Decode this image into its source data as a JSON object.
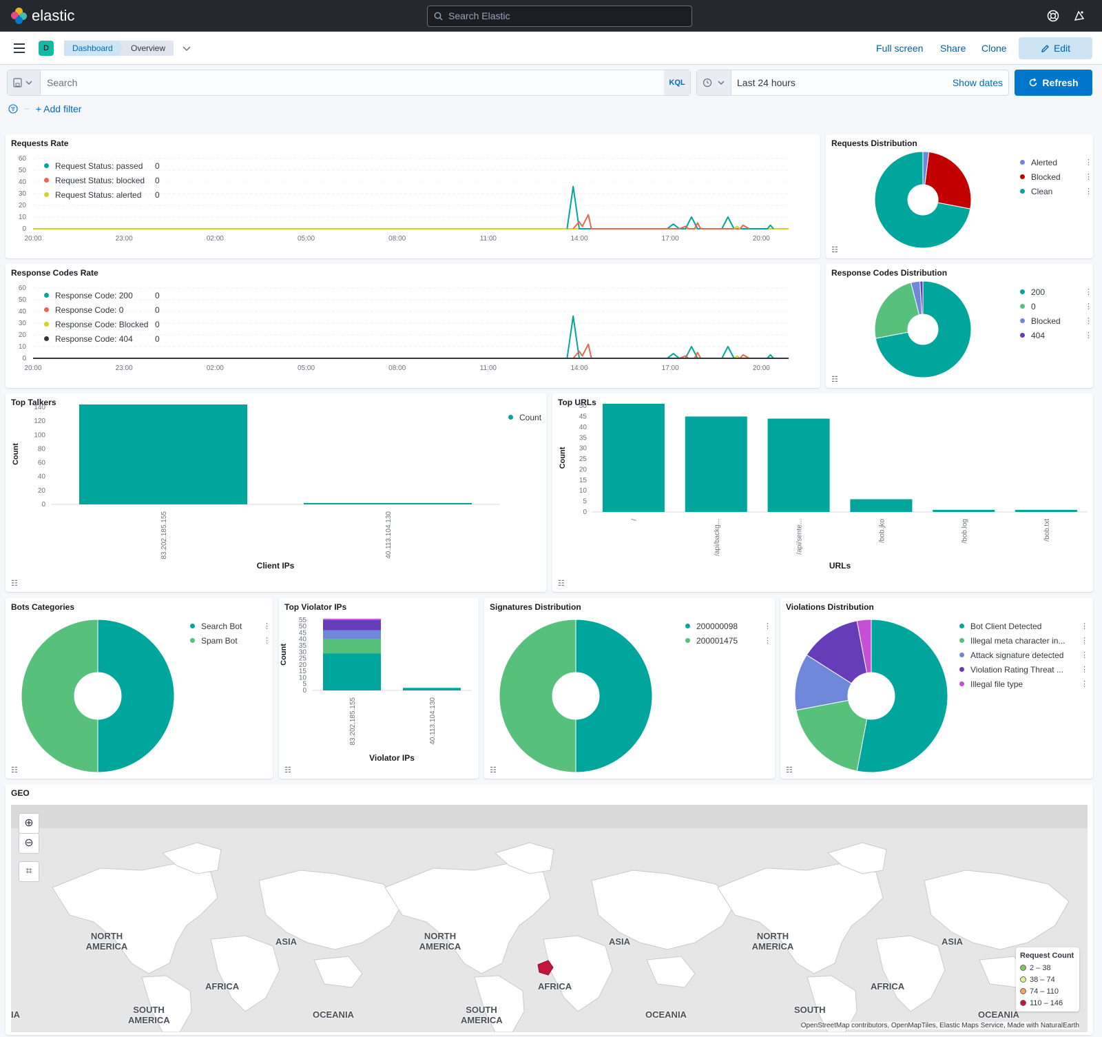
{
  "app": {
    "logo_text": "elastic",
    "search_placeholder": "Search Elastic",
    "space_initial": "D"
  },
  "nav": {
    "breadcrumbs": [
      "Dashboard",
      "Overview"
    ],
    "actions": {
      "full_screen": "Full screen",
      "share": "Share",
      "clone": "Clone",
      "edit": "Edit"
    }
  },
  "query": {
    "placeholder": "Search",
    "language": "KQL",
    "time_range": "Last 24 hours",
    "show_dates": "Show dates",
    "refresh": "Refresh",
    "add_filter": "+ Add filter"
  },
  "colors": {
    "teal": "#00a69b",
    "green": "#57c17b",
    "red": "#c20000",
    "blue": "#6f87d8",
    "purple": "#663db8",
    "pink": "#c54fd7",
    "yellow": "#d6d320",
    "dark": "#343741",
    "coral": "#e7664c"
  },
  "panels": {
    "requests_rate": {
      "title": "Requests Rate"
    },
    "requests_distribution": {
      "title": "Requests Distribution"
    },
    "response_codes_rate": {
      "title": "Response Codes Rate"
    },
    "response_codes_distribution": {
      "title": "Response Codes Distribution"
    },
    "top_talkers": {
      "title": "Top Talkers"
    },
    "top_urls": {
      "title": "Top URLs"
    },
    "bots_categories": {
      "title": "Bots Categories"
    },
    "top_violator_ips": {
      "title": "Top Violator IPs"
    },
    "signatures_distribution": {
      "title": "Signatures Distribution"
    },
    "violations_distribution": {
      "title": "Violations Distribution"
    },
    "geo": {
      "title": "GEO",
      "continents": [
        "NORTH AMERICA",
        "ASIA",
        "AFRICA",
        "SOUTH AMERICA",
        "OCEANIA",
        "IA",
        "SOUTH"
      ],
      "legend_title": "Request Count",
      "legend": [
        {
          "label": "2 – 38",
          "color": "#7dc95e"
        },
        {
          "label": "38 – 74",
          "color": "#e8f08a"
        },
        {
          "label": "74 – 110",
          "color": "#f4a55a"
        },
        {
          "label": "110 – 146",
          "color": "#c3143c"
        }
      ],
      "attribution": "OpenStreetMap contributors, OpenMapTiles, Elastic Maps Service, Made with NaturalEarth"
    }
  },
  "chart_data": [
    {
      "id": "requests_rate",
      "type": "line",
      "title": "Requests Rate",
      "x_ticks": [
        "20:00",
        "23:00",
        "02:00",
        "05:00",
        "08:00",
        "11:00",
        "14:00",
        "17:00",
        "20:00"
      ],
      "ylim": [
        0,
        60
      ],
      "y_ticks": [
        0,
        10,
        20,
        30,
        40,
        50,
        60
      ],
      "series": [
        {
          "name": "Request Status: passed",
          "legend_value": "0",
          "color": "#00a69b",
          "points": [
            [
              17.6,
              0
            ],
            [
              17.8,
              36
            ],
            [
              18.0,
              0
            ],
            [
              20.9,
              0
            ],
            [
              21.1,
              4
            ],
            [
              21.3,
              0
            ],
            [
              21.5,
              0
            ],
            [
              21.7,
              10
            ],
            [
              21.9,
              0
            ],
            [
              22.7,
              0
            ],
            [
              22.9,
              10
            ],
            [
              23.1,
              0
            ],
            [
              24.2,
              0
            ],
            [
              24.3,
              3
            ],
            [
              24.4,
              0
            ]
          ]
        },
        {
          "name": "Request Status: blocked",
          "legend_value": "0",
          "color": "#e7664c",
          "points": [
            [
              17.8,
              0
            ],
            [
              18.0,
              6
            ],
            [
              18.1,
              2
            ],
            [
              18.3,
              12
            ],
            [
              18.4,
              0
            ],
            [
              21.3,
              0
            ],
            [
              21.5,
              2
            ],
            [
              21.6,
              0
            ],
            [
              21.8,
              0
            ],
            [
              21.9,
              5
            ],
            [
              22.0,
              0
            ],
            [
              23.3,
              0
            ],
            [
              23.4,
              3
            ],
            [
              23.6,
              0
            ]
          ]
        },
        {
          "name": "Request Status: alerted",
          "legend_value": "0",
          "color": "#d6d320",
          "points": [
            [
              23.1,
              0
            ],
            [
              23.2,
              2
            ],
            [
              23.3,
              0
            ]
          ]
        }
      ]
    },
    {
      "id": "requests_distribution",
      "type": "pie",
      "title": "Requests Distribution",
      "slices": [
        {
          "label": "Alerted",
          "value": 2,
          "color": "#6f87d8"
        },
        {
          "label": "Blocked",
          "value": 26,
          "color": "#c20000"
        },
        {
          "label": "Clean",
          "value": 72,
          "color": "#00a69b"
        }
      ]
    },
    {
      "id": "response_codes_rate",
      "type": "line",
      "title": "Response Codes Rate",
      "x_ticks": [
        "20:00",
        "23:00",
        "02:00",
        "05:00",
        "08:00",
        "11:00",
        "14:00",
        "17:00",
        "20:00"
      ],
      "ylim": [
        0,
        60
      ],
      "y_ticks": [
        0,
        10,
        20,
        30,
        40,
        50,
        60
      ],
      "series": [
        {
          "name": "Response Code: 200",
          "legend_value": "0",
          "color": "#00a69b",
          "points": [
            [
              17.6,
              0
            ],
            [
              17.8,
              36
            ],
            [
              18.0,
              0
            ],
            [
              20.9,
              0
            ],
            [
              21.1,
              4
            ],
            [
              21.3,
              0
            ],
            [
              21.5,
              0
            ],
            [
              21.7,
              10
            ],
            [
              21.9,
              0
            ],
            [
              22.7,
              0
            ],
            [
              22.9,
              10
            ],
            [
              23.1,
              0
            ],
            [
              24.2,
              0
            ],
            [
              24.3,
              3
            ],
            [
              24.4,
              0
            ]
          ]
        },
        {
          "name": "Response Code: 0",
          "legend_value": "0",
          "color": "#e7664c",
          "points": [
            [
              17.8,
              0
            ],
            [
              18.0,
              6
            ],
            [
              18.1,
              2
            ],
            [
              18.3,
              12
            ],
            [
              18.4,
              0
            ],
            [
              21.3,
              0
            ],
            [
              21.5,
              2
            ],
            [
              21.6,
              0
            ],
            [
              21.8,
              0
            ],
            [
              21.9,
              5
            ],
            [
              22.0,
              0
            ],
            [
              23.3,
              0
            ],
            [
              23.4,
              3
            ],
            [
              23.6,
              0
            ]
          ]
        },
        {
          "name": "Response Code: Blocked",
          "legend_value": "0",
          "color": "#d6d320",
          "points": [
            [
              23.1,
              0
            ],
            [
              23.2,
              2
            ],
            [
              23.3,
              0
            ]
          ]
        },
        {
          "name": "Response Code: 404",
          "legend_value": "0",
          "color": "#343741",
          "points": [
            [
              0,
              0
            ],
            [
              24.9,
              0
            ]
          ]
        }
      ]
    },
    {
      "id": "response_codes_distribution",
      "type": "pie",
      "title": "Response Codes Distribution",
      "slices": [
        {
          "label": "200",
          "value": 72,
          "color": "#00a69b"
        },
        {
          "label": "0",
          "value": 24,
          "color": "#57c17b"
        },
        {
          "label": "Blocked",
          "value": 3,
          "color": "#6f87d8"
        },
        {
          "label": "404",
          "value": 1,
          "color": "#663db8"
        }
      ]
    },
    {
      "id": "top_talkers",
      "type": "bar",
      "title": "Top Talkers",
      "xlabel": "Client IPs",
      "ylabel": "Count",
      "categories": [
        "83.202.185.155",
        "40.113.104.130"
      ],
      "values": [
        144,
        2
      ],
      "ylim": [
        0,
        145
      ],
      "y_ticks": [
        0,
        20,
        40,
        60,
        80,
        100,
        120,
        140
      ],
      "legend": "Count"
    },
    {
      "id": "top_urls",
      "type": "bar",
      "title": "Top URLs",
      "xlabel": "URLs",
      "ylabel": "Count",
      "categories": [
        "/",
        "/api/backg...",
        "/api/sente...",
        "/bob.jko",
        "/bob.log",
        "/bob.txt"
      ],
      "values": [
        51,
        45,
        44,
        6,
        1,
        1
      ],
      "ylim": [
        0,
        51
      ],
      "y_ticks": [
        0,
        5,
        10,
        15,
        20,
        25,
        30,
        35,
        40,
        45,
        50
      ]
    },
    {
      "id": "bots_categories",
      "type": "pie",
      "title": "Bots Categories",
      "slices": [
        {
          "label": "Search Bot",
          "value": 50,
          "color": "#00a69b"
        },
        {
          "label": "Spam Bot",
          "value": 50,
          "color": "#57c17b"
        }
      ]
    },
    {
      "id": "top_violator_ips",
      "type": "bar",
      "title": "Top Violator IPs",
      "xlabel": "Violator IPs",
      "ylabel": "Count",
      "categories": [
        "83.202.185.155",
        "40.113.104.130"
      ],
      "series": [
        {
          "name": "Bot Client Detected",
          "color": "#00a69b",
          "values": [
            29,
            2
          ]
        },
        {
          "name": "Illegal meta character in...",
          "color": "#57c17b",
          "values": [
            11,
            0
          ]
        },
        {
          "name": "Attack signature detected",
          "color": "#6f87d8",
          "values": [
            7,
            0
          ]
        },
        {
          "name": "Violation Rating Threat ...",
          "color": "#663db8",
          "values": [
            8,
            0
          ]
        },
        {
          "name": "Illegal file type",
          "color": "#c54fd7",
          "values": [
            1,
            0
          ]
        }
      ],
      "ylim": [
        0,
        56
      ],
      "y_ticks": [
        0,
        5,
        10,
        15,
        20,
        25,
        30,
        35,
        40,
        45,
        50,
        55
      ]
    },
    {
      "id": "signatures_distribution",
      "type": "pie",
      "title": "Signatures Distribution",
      "slices": [
        {
          "label": "200000098",
          "value": 50,
          "color": "#00a69b"
        },
        {
          "label": "200001475",
          "value": 50,
          "color": "#57c17b"
        }
      ]
    },
    {
      "id": "violations_distribution",
      "type": "pie",
      "title": "Violations Distribution",
      "slices": [
        {
          "label": "Bot Client Detected",
          "value": 53,
          "color": "#00a69b"
        },
        {
          "label": "Illegal meta character in...",
          "value": 19,
          "color": "#57c17b"
        },
        {
          "label": "Attack signature detected",
          "value": 12,
          "color": "#6f87d8"
        },
        {
          "label": "Violation Rating Threat ...",
          "value": 13,
          "color": "#663db8"
        },
        {
          "label": "Illegal file type",
          "value": 3,
          "color": "#c54fd7"
        }
      ]
    }
  ]
}
